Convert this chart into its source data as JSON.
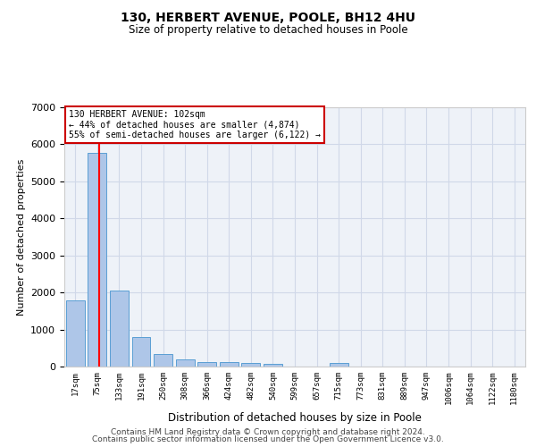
{
  "title": "130, HERBERT AVENUE, POOLE, BH12 4HU",
  "subtitle": "Size of property relative to detached houses in Poole",
  "xlabel": "Distribution of detached houses by size in Poole",
  "ylabel": "Number of detached properties",
  "categories": [
    "17sqm",
    "75sqm",
    "133sqm",
    "191sqm",
    "250sqm",
    "308sqm",
    "366sqm",
    "424sqm",
    "482sqm",
    "540sqm",
    "599sqm",
    "657sqm",
    "715sqm",
    "773sqm",
    "831sqm",
    "889sqm",
    "947sqm",
    "1006sqm",
    "1064sqm",
    "1122sqm",
    "1180sqm"
  ],
  "values": [
    1780,
    5780,
    2060,
    800,
    340,
    200,
    120,
    110,
    90,
    75,
    0,
    0,
    100,
    0,
    0,
    0,
    0,
    0,
    0,
    0,
    0
  ],
  "bar_color": "#aec6e8",
  "bar_edge_color": "#5a9fd4",
  "red_line_x": 1.08,
  "annotation_text": "130 HERBERT AVENUE: 102sqm\n← 44% of detached houses are smaller (4,874)\n55% of semi-detached houses are larger (6,122) →",
  "annotation_box_color": "#ffffff",
  "annotation_box_edge_color": "#cc0000",
  "ylim": [
    0,
    7000
  ],
  "yticks": [
    0,
    1000,
    2000,
    3000,
    4000,
    5000,
    6000,
    7000
  ],
  "grid_color": "#d0d8e8",
  "background_color": "#eef2f8",
  "footer_line1": "Contains HM Land Registry data © Crown copyright and database right 2024.",
  "footer_line2": "Contains public sector information licensed under the Open Government Licence v3.0.",
  "title_fontsize": 10,
  "subtitle_fontsize": 8.5,
  "footer_fontsize": 6.5
}
